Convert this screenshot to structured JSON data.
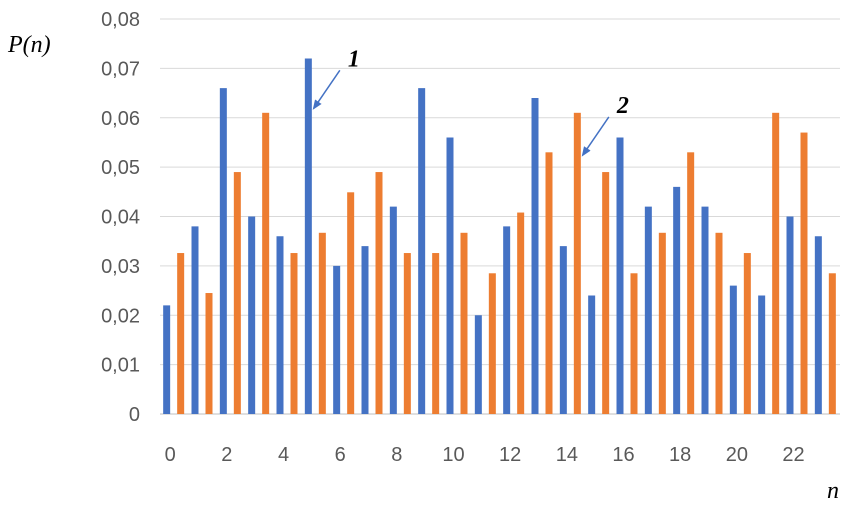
{
  "chart_data": {
    "type": "bar",
    "xlabel": "n",
    "ylabel": "P(n)",
    "ylim": [
      0,
      0.08
    ],
    "yticks": [
      0,
      0.01,
      0.02,
      0.03,
      0.04,
      0.05,
      0.06,
      0.07,
      0.08
    ],
    "ytick_labels": [
      "0",
      "0,01",
      "0,02",
      "0,03",
      "0,04",
      "0,05",
      "0,06",
      "0,07",
      "0,08"
    ],
    "x": [
      0,
      1,
      2,
      3,
      4,
      5,
      6,
      7,
      8,
      9,
      10,
      11,
      12,
      13,
      14,
      15,
      16,
      17,
      18,
      19,
      20,
      21,
      22,
      23
    ],
    "xtick_labels": [
      "0",
      "2",
      "4",
      "6",
      "8",
      "10",
      "12",
      "14",
      "16",
      "18",
      "20",
      "22"
    ],
    "grid": true,
    "legend": false,
    "series": [
      {
        "color": "#4472C4",
        "values": [
          0.022,
          0.038,
          0.066,
          0.04,
          0.036,
          0.072,
          0.03,
          0.034,
          0.042,
          0.066,
          0.056,
          0.02,
          0.038,
          0.064,
          0.034,
          0.024,
          0.056,
          0.042,
          0.046,
          0.042,
          0.026,
          0.024,
          0.04,
          0.036
        ]
      },
      {
        "color": "#ED7D31",
        "values": [
          0.0326,
          0.0245,
          0.049,
          0.061,
          0.0326,
          0.0367,
          0.0449,
          0.049,
          0.0326,
          0.0326,
          0.0367,
          0.0285,
          0.0408,
          0.053,
          0.061,
          0.049,
          0.0285,
          0.0367,
          0.053,
          0.0367,
          0.0326,
          0.061,
          0.057,
          0.0285
        ]
      }
    ],
    "annotations": [
      {
        "text": "1",
        "series": 0,
        "x": 5
      },
      {
        "text": "2",
        "series": 1,
        "x": 14
      }
    ]
  }
}
